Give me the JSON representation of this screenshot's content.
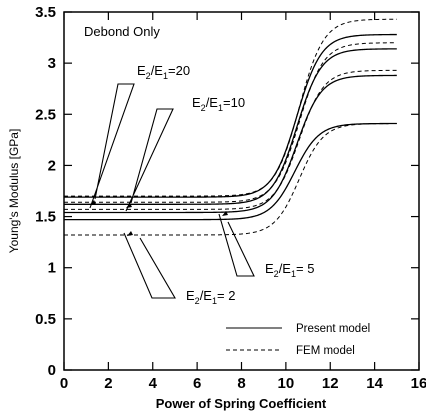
{
  "chart_data": {
    "type": "line",
    "title": "",
    "panel_label": "Debond Only",
    "xlabel": "Power of Spring Coefficient",
    "ylabel": "Young's Modulus [GPa]",
    "xlim": [
      0,
      16
    ],
    "ylim": [
      0,
      3.5
    ],
    "x_ticks": [
      "0",
      "2",
      "4",
      "6",
      "8",
      "10",
      "12",
      "14",
      "16"
    ],
    "y_ticks": [
      "0",
      "0.5",
      "1",
      "1.5",
      "2",
      "2.5",
      "3",
      "3.5"
    ],
    "grid": false,
    "legend": {
      "placement": "bottom-right",
      "entries": [
        {
          "label": "Present model",
          "style": "solid"
        },
        {
          "label": "FEM model",
          "style": "dashed"
        }
      ]
    },
    "annotations": [
      {
        "base": "E",
        "sub1": "2",
        "sep": "/E",
        "sub2": "1",
        "value": "=20"
      },
      {
        "base": "E",
        "sub1": "2",
        "sep": "/E",
        "sub2": "1",
        "value": "=10"
      },
      {
        "base": "E",
        "sub1": "2",
        "sep": "/E",
        "sub2": "1",
        "value": "= 5"
      },
      {
        "base": "E",
        "sub1": "2",
        "sep": "/E",
        "sub2": "1",
        "value": "= 2"
      }
    ],
    "series": [
      {
        "ratio": 20,
        "model": "present",
        "low": 1.69,
        "high": 3.28,
        "mid": 10.5,
        "width": 0.55
      },
      {
        "ratio": 20,
        "model": "FEM",
        "low": 1.7,
        "high": 3.43,
        "mid": 10.6,
        "width": 0.55
      },
      {
        "ratio": 10,
        "model": "present",
        "low": 1.62,
        "high": 3.14,
        "mid": 10.5,
        "width": 0.55
      },
      {
        "ratio": 10,
        "model": "FEM",
        "low": 1.64,
        "high": 3.2,
        "mid": 10.6,
        "width": 0.55
      },
      {
        "ratio": 5,
        "model": "present",
        "low": 1.54,
        "high": 2.88,
        "mid": 10.5,
        "width": 0.55
      },
      {
        "ratio": 5,
        "model": "FEM",
        "low": 1.57,
        "high": 2.93,
        "mid": 10.6,
        "width": 0.55
      },
      {
        "ratio": 2,
        "model": "present",
        "low": 1.47,
        "high": 2.41,
        "mid": 10.4,
        "width": 0.55
      },
      {
        "ratio": 2,
        "model": "FEM",
        "low": 1.32,
        "high": 2.41,
        "mid": 10.6,
        "width": 0.55
      }
    ],
    "x_range": [
      0,
      15
    ]
  }
}
